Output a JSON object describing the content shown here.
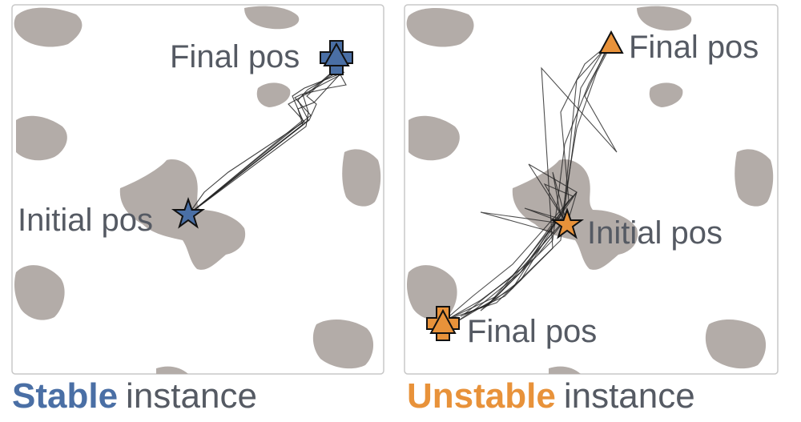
{
  "colors": {
    "stable": "#4a6fa5",
    "unstable": "#e8923a",
    "blob": "#b3aca8",
    "path": "#222222",
    "text": "#555a63",
    "frame": "#c8c8c8"
  },
  "panels": [
    {
      "key": "stable",
      "caption_strong": "Stable",
      "caption_rest": "instance",
      "initial_label": "Initial pos",
      "final_label": "Final pos"
    },
    {
      "key": "unstable",
      "caption_strong": "Unstable",
      "caption_rest": "instance",
      "initial_label": "Initial pos",
      "final_label_1": "Final pos",
      "final_label_2": "Final pos"
    }
  ],
  "icons": [
    "star-marker",
    "cross-marker",
    "triangle-marker"
  ]
}
